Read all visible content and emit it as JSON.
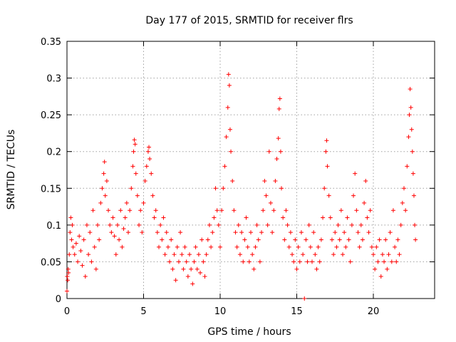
{
  "chart_data": {
    "type": "scatter",
    "title": "Day 177 of 2015, SRMTID for receiver flrs",
    "xlabel": "GPS time / hours",
    "ylabel": "SRMTID / TECUs",
    "xlim": [
      0,
      24
    ],
    "ylim": [
      0,
      0.35
    ],
    "xticks": [
      0,
      5,
      10,
      15,
      20
    ],
    "xtick_labels": [
      "0",
      "5",
      "10",
      "15",
      "20"
    ],
    "yticks": [
      0,
      0.05,
      0.1,
      0.15,
      0.2,
      0.25,
      0.3,
      0.35
    ],
    "ytick_labels": [
      "0",
      "0.05",
      "0.1",
      "0.15",
      "0.2",
      "0.25",
      "0.3",
      "0.35"
    ],
    "grid": true,
    "marker": "+",
    "color": "#ff0000",
    "series": [
      {
        "name": "flrs",
        "points": [
          [
            0.0,
            0.01
          ],
          [
            0.02,
            0.03
          ],
          [
            0.05,
            0.025
          ],
          [
            0.08,
            0.04
          ],
          [
            0.1,
            0.035
          ],
          [
            0.15,
            0.06
          ],
          [
            0.2,
            0.09
          ],
          [
            0.25,
            0.11
          ],
          [
            0.3,
            0.08
          ],
          [
            0.35,
            0.1
          ],
          [
            0.4,
            0.07
          ],
          [
            0.5,
            0.06
          ],
          [
            0.6,
            0.075
          ],
          [
            0.7,
            0.05
          ],
          [
            0.8,
            0.085
          ],
          [
            0.9,
            0.065
          ],
          [
            1.0,
            0.045
          ],
          [
            1.1,
            0.08
          ],
          [
            1.2,
            0.03
          ],
          [
            1.3,
            0.1
          ],
          [
            1.4,
            0.06
          ],
          [
            1.5,
            0.09
          ],
          [
            1.6,
            0.05
          ],
          [
            1.7,
            0.12
          ],
          [
            1.8,
            0.07
          ],
          [
            1.9,
            0.04
          ],
          [
            2.0,
            0.1
          ],
          [
            2.1,
            0.08
          ],
          [
            2.2,
            0.13
          ],
          [
            2.3,
            0.15
          ],
          [
            2.4,
            0.17
          ],
          [
            2.45,
            0.186
          ],
          [
            2.5,
            0.14
          ],
          [
            2.6,
            0.16
          ],
          [
            2.7,
            0.12
          ],
          [
            2.8,
            0.1
          ],
          [
            2.9,
            0.09
          ],
          [
            3.0,
            0.11
          ],
          [
            3.1,
            0.085
          ],
          [
            3.2,
            0.06
          ],
          [
            3.3,
            0.1
          ],
          [
            3.4,
            0.08
          ],
          [
            3.5,
            0.12
          ],
          [
            3.6,
            0.07
          ],
          [
            3.7,
            0.095
          ],
          [
            3.8,
            0.11
          ],
          [
            3.9,
            0.13
          ],
          [
            4.0,
            0.09
          ],
          [
            4.1,
            0.12
          ],
          [
            4.2,
            0.15
          ],
          [
            4.3,
            0.18
          ],
          [
            4.35,
            0.2
          ],
          [
            4.4,
            0.216
          ],
          [
            4.45,
            0.21
          ],
          [
            4.5,
            0.17
          ],
          [
            4.6,
            0.14
          ],
          [
            4.7,
            0.1
          ],
          [
            4.8,
            0.12
          ],
          [
            4.9,
            0.09
          ],
          [
            5.0,
            0.13
          ],
          [
            5.1,
            0.16
          ],
          [
            5.2,
            0.18
          ],
          [
            5.3,
            0.2
          ],
          [
            5.35,
            0.206
          ],
          [
            5.4,
            0.19
          ],
          [
            5.5,
            0.17
          ],
          [
            5.6,
            0.14
          ],
          [
            5.7,
            0.11
          ],
          [
            5.8,
            0.12
          ],
          [
            5.9,
            0.09
          ],
          [
            6.0,
            0.07
          ],
          [
            6.1,
            0.1
          ],
          [
            6.2,
            0.08
          ],
          [
            6.3,
            0.11
          ],
          [
            6.4,
            0.06
          ],
          [
            6.5,
            0.09
          ],
          [
            6.6,
            0.07
          ],
          [
            6.7,
            0.05
          ],
          [
            6.8,
            0.08
          ],
          [
            6.9,
            0.04
          ],
          [
            7.0,
            0.06
          ],
          [
            7.1,
            0.025
          ],
          [
            7.2,
            0.07
          ],
          [
            7.3,
            0.05
          ],
          [
            7.4,
            0.09
          ],
          [
            7.5,
            0.06
          ],
          [
            7.6,
            0.04
          ],
          [
            7.7,
            0.07
          ],
          [
            7.8,
            0.05
          ],
          [
            7.9,
            0.03
          ],
          [
            8.0,
            0.06
          ],
          [
            8.1,
            0.04
          ],
          [
            8.2,
            0.02
          ],
          [
            8.3,
            0.05
          ],
          [
            8.4,
            0.07
          ],
          [
            8.5,
            0.04
          ],
          [
            8.6,
            0.06
          ],
          [
            8.7,
            0.035
          ],
          [
            8.8,
            0.08
          ],
          [
            8.9,
            0.05
          ],
          [
            9.0,
            0.03
          ],
          [
            9.1,
            0.06
          ],
          [
            9.2,
            0.08
          ],
          [
            9.3,
            0.1
          ],
          [
            9.4,
            0.07
          ],
          [
            9.5,
            0.09
          ],
          [
            9.6,
            0.11
          ],
          [
            9.7,
            0.15
          ],
          [
            9.8,
            0.12
          ],
          [
            9.9,
            0.1
          ],
          [
            10.0,
            0.07
          ],
          [
            10.1,
            0.12
          ],
          [
            10.2,
            0.15
          ],
          [
            10.3,
            0.18
          ],
          [
            10.4,
            0.22
          ],
          [
            10.5,
            0.26
          ],
          [
            10.55,
            0.305
          ],
          [
            10.6,
            0.29
          ],
          [
            10.65,
            0.23
          ],
          [
            10.7,
            0.2
          ],
          [
            10.8,
            0.16
          ],
          [
            10.9,
            0.12
          ],
          [
            11.0,
            0.09
          ],
          [
            11.1,
            0.07
          ],
          [
            11.2,
            0.1
          ],
          [
            11.3,
            0.06
          ],
          [
            11.4,
            0.09
          ],
          [
            11.5,
            0.05
          ],
          [
            11.6,
            0.08
          ],
          [
            11.7,
            0.11
          ],
          [
            11.8,
            0.07
          ],
          [
            11.9,
            0.05
          ],
          [
            12.0,
            0.09
          ],
          [
            12.1,
            0.06
          ],
          [
            12.2,
            0.04
          ],
          [
            12.3,
            0.07
          ],
          [
            12.4,
            0.1
          ],
          [
            12.5,
            0.08
          ],
          [
            12.6,
            0.05
          ],
          [
            12.7,
            0.09
          ],
          [
            12.8,
            0.12
          ],
          [
            12.9,
            0.16
          ],
          [
            13.0,
            0.14
          ],
          [
            13.1,
            0.1
          ],
          [
            13.2,
            0.2
          ],
          [
            13.3,
            0.13
          ],
          [
            13.4,
            0.09
          ],
          [
            13.5,
            0.12
          ],
          [
            13.6,
            0.16
          ],
          [
            13.7,
            0.19
          ],
          [
            13.8,
            0.218
          ],
          [
            13.85,
            0.258
          ],
          [
            13.9,
            0.272
          ],
          [
            13.95,
            0.2
          ],
          [
            14.0,
            0.15
          ],
          [
            14.1,
            0.11
          ],
          [
            14.2,
            0.08
          ],
          [
            14.3,
            0.12
          ],
          [
            14.4,
            0.1
          ],
          [
            14.5,
            0.07
          ],
          [
            14.6,
            0.09
          ],
          [
            14.7,
            0.06
          ],
          [
            14.8,
            0.05
          ],
          [
            14.9,
            0.08
          ],
          [
            15.0,
            0.04
          ],
          [
            15.1,
            0.07
          ],
          [
            15.2,
            0.05
          ],
          [
            15.3,
            0.09
          ],
          [
            15.4,
            0.06
          ],
          [
            15.5,
            0.0
          ],
          [
            15.6,
            0.08
          ],
          [
            15.7,
            0.05
          ],
          [
            15.8,
            0.1
          ],
          [
            15.9,
            0.07
          ],
          [
            16.0,
            0.05
          ],
          [
            16.1,
            0.09
          ],
          [
            16.2,
            0.06
          ],
          [
            16.3,
            0.04
          ],
          [
            16.4,
            0.07
          ],
          [
            16.5,
            0.05
          ],
          [
            16.6,
            0.08
          ],
          [
            16.7,
            0.11
          ],
          [
            16.8,
            0.15
          ],
          [
            16.9,
            0.2
          ],
          [
            16.95,
            0.215
          ],
          [
            17.0,
            0.18
          ],
          [
            17.1,
            0.14
          ],
          [
            17.2,
            0.11
          ],
          [
            17.3,
            0.08
          ],
          [
            17.4,
            0.06
          ],
          [
            17.5,
            0.09
          ],
          [
            17.6,
            0.07
          ],
          [
            17.7,
            0.1
          ],
          [
            17.8,
            0.08
          ],
          [
            17.9,
            0.12
          ],
          [
            18.0,
            0.06
          ],
          [
            18.1,
            0.09
          ],
          [
            18.2,
            0.07
          ],
          [
            18.3,
            0.11
          ],
          [
            18.4,
            0.08
          ],
          [
            18.5,
            0.05
          ],
          [
            18.6,
            0.1
          ],
          [
            18.7,
            0.14
          ],
          [
            18.8,
            0.17
          ],
          [
            18.9,
            0.12
          ],
          [
            19.0,
            0.09
          ],
          [
            19.1,
            0.07
          ],
          [
            19.2,
            0.1
          ],
          [
            19.3,
            0.08
          ],
          [
            19.4,
            0.13
          ],
          [
            19.5,
            0.16
          ],
          [
            19.6,
            0.11
          ],
          [
            19.7,
            0.09
          ],
          [
            19.8,
            0.12
          ],
          [
            19.9,
            0.07
          ],
          [
            20.0,
            0.06
          ],
          [
            20.1,
            0.04
          ],
          [
            20.2,
            0.07
          ],
          [
            20.3,
            0.05
          ],
          [
            20.4,
            0.08
          ],
          [
            20.5,
            0.03
          ],
          [
            20.6,
            0.06
          ],
          [
            20.7,
            0.05
          ],
          [
            20.8,
            0.08
          ],
          [
            20.9,
            0.04
          ],
          [
            21.0,
            0.06
          ],
          [
            21.1,
            0.09
          ],
          [
            21.2,
            0.05
          ],
          [
            21.3,
            0.12
          ],
          [
            21.4,
            0.07
          ],
          [
            21.5,
            0.05
          ],
          [
            21.6,
            0.08
          ],
          [
            21.7,
            0.06
          ],
          [
            21.8,
            0.1
          ],
          [
            21.9,
            0.13
          ],
          [
            22.0,
            0.15
          ],
          [
            22.1,
            0.12
          ],
          [
            22.2,
            0.18
          ],
          [
            22.3,
            0.22
          ],
          [
            22.35,
            0.25
          ],
          [
            22.4,
            0.285
          ],
          [
            22.45,
            0.26
          ],
          [
            22.5,
            0.23
          ],
          [
            22.55,
            0.2
          ],
          [
            22.6,
            0.17
          ],
          [
            22.65,
            0.14
          ],
          [
            22.7,
            0.1
          ],
          [
            22.75,
            0.08
          ]
        ]
      }
    ]
  }
}
